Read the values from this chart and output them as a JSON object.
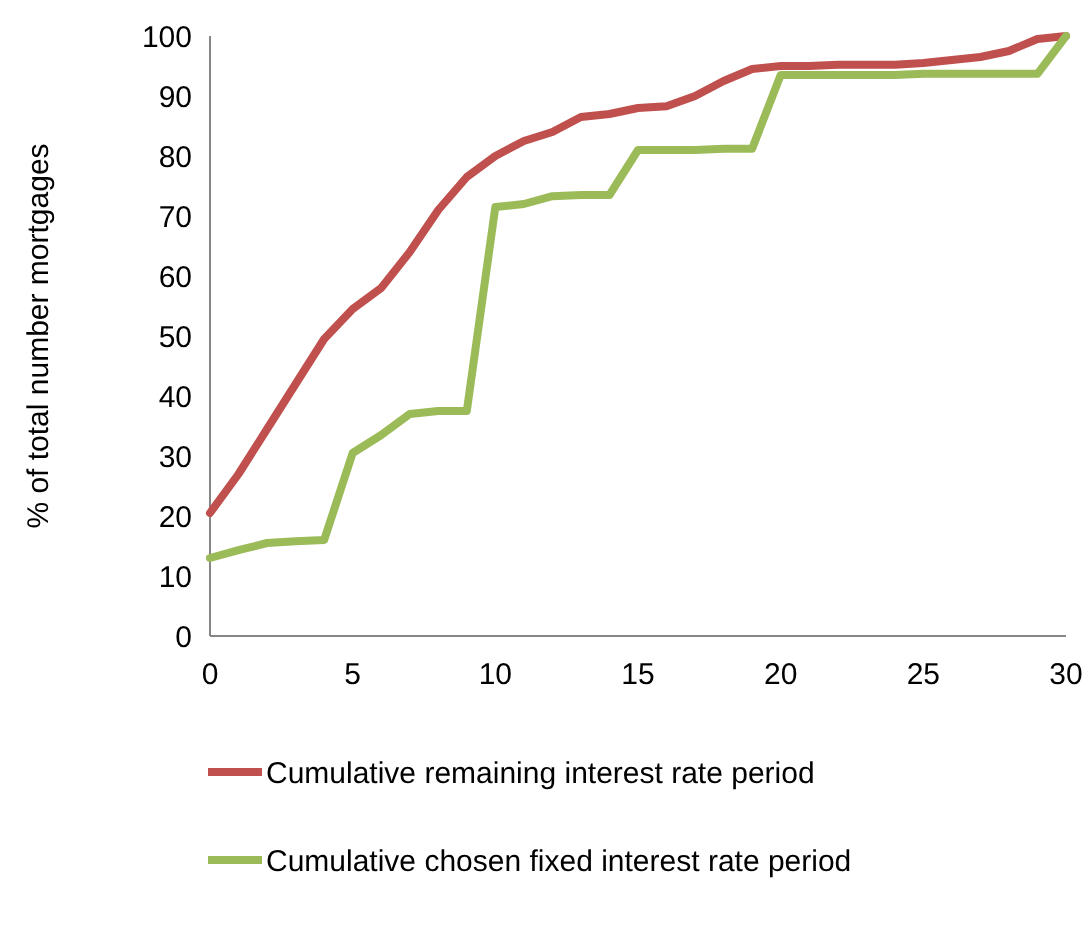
{
  "chart_data": {
    "type": "line",
    "ylabel": "% of total number mortgages",
    "x": [
      0,
      1,
      2,
      3,
      4,
      5,
      6,
      7,
      8,
      9,
      10,
      11,
      12,
      13,
      14,
      15,
      16,
      17,
      18,
      19,
      20,
      21,
      22,
      23,
      24,
      25,
      26,
      27,
      28,
      29,
      30
    ],
    "series": [
      {
        "name": "Cumulative remaining interest rate period",
        "color": "#c0504d",
        "values": [
          20.5,
          27,
          34.5,
          42,
          49.5,
          54.5,
          58,
          64,
          71,
          76.5,
          80,
          82.5,
          84,
          86.5,
          87,
          88,
          88.3,
          90,
          92.5,
          94.5,
          95,
          95,
          95.2,
          95.2,
          95.2,
          95.5,
          96,
          96.5,
          97.5,
          99.5,
          100
        ]
      },
      {
        "name": "Cumulative chosen fixed interest rate period",
        "color": "#9bbb59",
        "values": [
          13,
          14.3,
          15.5,
          15.8,
          16,
          30.5,
          33.5,
          37,
          37.5,
          37.5,
          71.5,
          72,
          73.3,
          73.5,
          73.5,
          81,
          81,
          81,
          81.2,
          81.2,
          93.5,
          93.5,
          93.5,
          93.5,
          93.5,
          93.7,
          93.7,
          93.7,
          93.7,
          93.7,
          100
        ]
      }
    ],
    "xlim": [
      0,
      30
    ],
    "xticks": [
      0,
      5,
      10,
      15,
      20,
      25,
      30
    ],
    "ylim": [
      0,
      100
    ],
    "yticks": [
      0,
      10,
      20,
      30,
      40,
      50,
      60,
      70,
      80,
      90,
      100
    ],
    "grid": false,
    "legend": "bottom",
    "marker": "none",
    "line_style": "solid"
  }
}
